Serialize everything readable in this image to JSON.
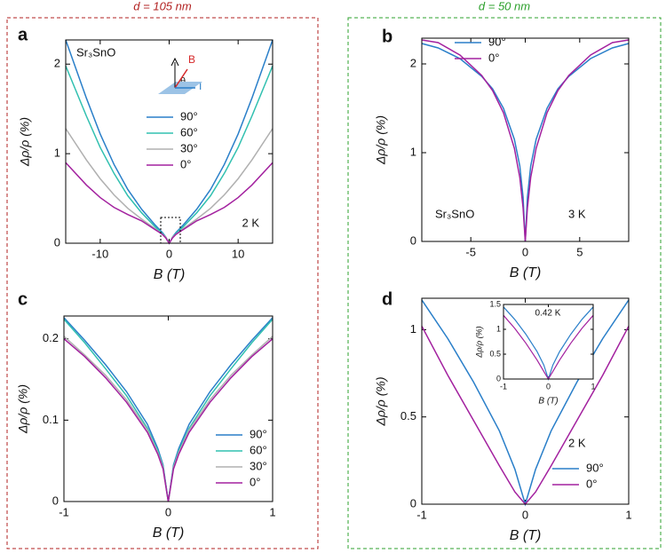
{
  "headers": [
    "d = 105 nm",
    "d = 50 nm"
  ],
  "chart_data": [
    {
      "type": "line",
      "panel": "a",
      "x_label": "B (T)",
      "y_label": "Δρ/ρ (%)",
      "x": [
        -15,
        -12,
        -10,
        -8,
        -6,
        -4,
        -2,
        -1,
        -0.5,
        0,
        0.5,
        1,
        2,
        4,
        6,
        8,
        10,
        12,
        15
      ],
      "xlim": [
        -15,
        15
      ],
      "xticks": [
        -10,
        0,
        10
      ],
      "ylim": [
        0,
        2.27
      ],
      "yticks": [
        0,
        1,
        2
      ],
      "legend": true,
      "annotations": [
        "Sr₃SnO",
        "2 K",
        "B",
        "θ",
        "I"
      ],
      "series": [
        {
          "name": "90°",
          "color": "#2a7fc9",
          "values": [
            2.27,
            1.62,
            1.22,
            0.88,
            0.6,
            0.38,
            0.2,
            0.12,
            0.07,
            0,
            0.07,
            0.12,
            0.2,
            0.38,
            0.6,
            0.88,
            1.22,
            1.62,
            2.27
          ]
        },
        {
          "name": "60°",
          "color": "#31c0b0",
          "values": [
            1.98,
            1.42,
            1.07,
            0.78,
            0.53,
            0.34,
            0.18,
            0.11,
            0.07,
            0,
            0.07,
            0.11,
            0.18,
            0.34,
            0.53,
            0.78,
            1.07,
            1.42,
            1.98
          ]
        },
        {
          "name": "30°",
          "color": "#b0b0b0",
          "values": [
            1.28,
            0.93,
            0.72,
            0.54,
            0.39,
            0.27,
            0.16,
            0.1,
            0.07,
            0,
            0.07,
            0.1,
            0.16,
            0.27,
            0.39,
            0.54,
            0.72,
            0.93,
            1.28
          ]
        },
        {
          "name": "0°",
          "color": "#a3219f",
          "values": [
            0.9,
            0.65,
            0.51,
            0.4,
            0.32,
            0.25,
            0.15,
            0.1,
            0.06,
            0,
            0.06,
            0.1,
            0.15,
            0.25,
            0.32,
            0.4,
            0.51,
            0.65,
            0.9
          ]
        }
      ]
    },
    {
      "type": "line",
      "panel": "b",
      "x_label": "B (T)",
      "y_label": "Δρ/ρ (%)",
      "x": [
        -9.5,
        -8,
        -6,
        -4,
        -3,
        -2,
        -1,
        -0.5,
        -0.2,
        0,
        0.2,
        0.5,
        1,
        2,
        3,
        4,
        6,
        8,
        9.5
      ],
      "xlim": [
        -9.5,
        9.5
      ],
      "xticks": [
        -5,
        0,
        5
      ],
      "ylim": [
        0,
        2.29
      ],
      "yticks": [
        0,
        1,
        2
      ],
      "legend": true,
      "annotations": [
        "Sr₃SnO",
        "3 K"
      ],
      "series": [
        {
          "name": "90°",
          "color": "#2a7fc9",
          "values": [
            2.23,
            2.18,
            2.06,
            1.86,
            1.72,
            1.5,
            1.15,
            0.85,
            0.5,
            0,
            0.5,
            0.85,
            1.15,
            1.5,
            1.72,
            1.86,
            2.06,
            2.18,
            2.23
          ]
        },
        {
          "name": "0°",
          "color": "#a3219f",
          "values": [
            2.27,
            2.24,
            2.1,
            1.87,
            1.7,
            1.45,
            1.05,
            0.72,
            0.38,
            0,
            0.38,
            0.72,
            1.05,
            1.45,
            1.7,
            1.87,
            2.1,
            2.24,
            2.27
          ]
        }
      ]
    },
    {
      "type": "line",
      "panel": "c",
      "x_label": "B (T)",
      "y_label": "Δρ/ρ (%)",
      "x": [
        -1,
        -0.8,
        -0.6,
        -0.4,
        -0.2,
        -0.1,
        -0.05,
        0,
        0.05,
        0.1,
        0.2,
        0.4,
        0.6,
        0.8,
        1
      ],
      "xlim": [
        -1,
        1
      ],
      "xticks": [
        -1,
        0,
        1
      ],
      "ylim": [
        0,
        0.228
      ],
      "yticks": [
        0,
        0.1,
        0.2
      ],
      "legend": true,
      "annotations": [],
      "series": [
        {
          "name": "90°",
          "color": "#2a7fc9",
          "values": [
            0.226,
            0.198,
            0.168,
            0.135,
            0.095,
            0.065,
            0.045,
            0,
            0.045,
            0.065,
            0.095,
            0.135,
            0.168,
            0.198,
            0.226
          ]
        },
        {
          "name": "60°",
          "color": "#31c0b0",
          "values": [
            0.224,
            0.195,
            0.163,
            0.13,
            0.09,
            0.062,
            0.043,
            0,
            0.043,
            0.062,
            0.09,
            0.13,
            0.163,
            0.195,
            0.224
          ]
        },
        {
          "name": "30°",
          "color": "#b0b0b0",
          "values": [
            0.203,
            0.18,
            0.155,
            0.125,
            0.088,
            0.06,
            0.042,
            0,
            0.042,
            0.06,
            0.088,
            0.125,
            0.155,
            0.18,
            0.203
          ]
        },
        {
          "name": "0°",
          "color": "#a3219f",
          "values": [
            0.2,
            0.178,
            0.152,
            0.122,
            0.085,
            0.058,
            0.04,
            0,
            0.04,
            0.058,
            0.085,
            0.122,
            0.152,
            0.178,
            0.2
          ]
        }
      ]
    },
    {
      "type": "line",
      "panel": "d",
      "x_label": "B (T)",
      "y_label": "Δρ/ρ (%)",
      "x": [
        -1,
        -0.75,
        -0.5,
        -0.25,
        -0.1,
        0,
        0.1,
        0.25,
        0.5,
        0.75,
        1
      ],
      "xlim": [
        -1,
        1
      ],
      "xticks": [
        -1,
        0,
        1
      ],
      "ylim": [
        0,
        1.18
      ],
      "yticks": [
        0,
        0.5,
        1
      ],
      "legend": true,
      "annotations": [
        "2 K"
      ],
      "series": [
        {
          "name": "90°",
          "color": "#2a7fc9",
          "values": [
            1.17,
            0.95,
            0.7,
            0.42,
            0.2,
            0,
            0.2,
            0.42,
            0.7,
            0.95,
            1.17
          ]
        },
        {
          "name": "0°",
          "color": "#a3219f",
          "values": [
            1.02,
            0.74,
            0.48,
            0.22,
            0.07,
            0,
            0.07,
            0.22,
            0.48,
            0.74,
            1.02
          ]
        }
      ]
    },
    {
      "type": "line",
      "x_label": "B (T)",
      "y_label": "Δρ/ρ (%)",
      "x": [
        -1,
        -0.75,
        -0.5,
        -0.25,
        -0.1,
        0,
        0.1,
        0.25,
        0.5,
        0.75,
        1
      ],
      "xlim": [
        -1,
        1
      ],
      "xticks": [
        -1,
        0,
        1
      ],
      "ylim": [
        0,
        1.5
      ],
      "yticks": [
        0,
        0.5,
        1,
        1.5
      ],
      "legend": false,
      "annotations": [
        "0.42 K"
      ],
      "series": [
        {
          "color": "#2a7fc9",
          "values": [
            1.45,
            1.2,
            0.9,
            0.55,
            0.28,
            0,
            0.28,
            0.55,
            0.9,
            1.2,
            1.45
          ]
        },
        {
          "color": "#a3219f",
          "values": [
            1.28,
            1.02,
            0.72,
            0.38,
            0.15,
            0,
            0.15,
            0.38,
            0.72,
            1.02,
            1.28
          ]
        }
      ]
    }
  ]
}
